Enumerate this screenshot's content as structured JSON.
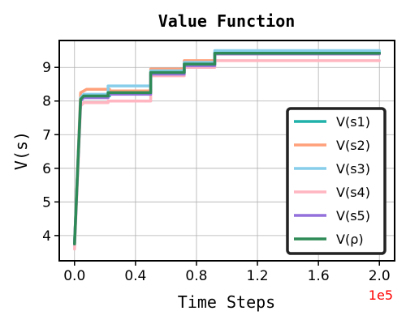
{
  "chart_data": {
    "type": "line",
    "title": "Value Function",
    "xlabel": "Time Steps",
    "ylabel": "V(s)",
    "x_multiplier_label": "1e5",
    "x_multiplier_color": "#ff0000",
    "xlim": [
      -0.1,
      2.1
    ],
    "ylim": [
      3.25,
      9.8
    ],
    "x_ticks": [
      0.0,
      0.4,
      0.8,
      1.2,
      1.6,
      2.0
    ],
    "x_tick_labels": [
      "0.0",
      "0.4",
      "0.8",
      "1.2",
      "1.6",
      "2.0"
    ],
    "y_ticks": [
      4,
      5,
      6,
      7,
      8,
      9
    ],
    "y_tick_labels": [
      "4",
      "5",
      "6",
      "7",
      "8",
      "9"
    ],
    "grid": true,
    "legend_position": "lower-right",
    "series": [
      {
        "name": "V(s1)",
        "color": "#20b2aa",
        "points": [
          [
            0.0,
            3.8
          ],
          [
            0.04,
            8.05
          ],
          [
            0.06,
            8.1
          ],
          [
            0.08,
            8.15
          ],
          [
            0.23,
            8.15
          ],
          [
            0.23,
            8.25
          ],
          [
            0.5,
            8.25
          ],
          [
            0.5,
            8.85
          ],
          [
            0.72,
            8.85
          ],
          [
            0.72,
            9.1
          ],
          [
            0.92,
            9.1
          ],
          [
            0.92,
            9.45
          ],
          [
            2.0,
            9.45
          ]
        ]
      },
      {
        "name": "V(s2)",
        "color": "#ffa07a",
        "points": [
          [
            0.0,
            3.75
          ],
          [
            0.04,
            8.25
          ],
          [
            0.08,
            8.35
          ],
          [
            0.23,
            8.35
          ],
          [
            0.23,
            8.3
          ],
          [
            0.5,
            8.3
          ],
          [
            0.5,
            8.95
          ],
          [
            0.72,
            8.95
          ],
          [
            0.72,
            9.2
          ],
          [
            0.92,
            9.2
          ],
          [
            0.92,
            9.4
          ],
          [
            2.0,
            9.4
          ]
        ]
      },
      {
        "name": "V(s3)",
        "color": "#87ceeb",
        "points": [
          [
            0.0,
            3.7
          ],
          [
            0.04,
            8.1
          ],
          [
            0.06,
            8.2
          ],
          [
            0.22,
            8.2
          ],
          [
            0.22,
            8.45
          ],
          [
            0.5,
            8.45
          ],
          [
            0.5,
            8.9
          ],
          [
            0.72,
            8.9
          ],
          [
            0.72,
            9.15
          ],
          [
            0.92,
            9.15
          ],
          [
            0.92,
            9.5
          ],
          [
            2.0,
            9.5
          ]
        ]
      },
      {
        "name": "V(s4)",
        "color": "#ffb6c1",
        "points": [
          [
            0.0,
            3.6
          ],
          [
            0.04,
            7.85
          ],
          [
            0.06,
            7.95
          ],
          [
            0.22,
            7.95
          ],
          [
            0.22,
            8.0
          ],
          [
            0.5,
            8.0
          ],
          [
            0.5,
            8.75
          ],
          [
            0.72,
            8.75
          ],
          [
            0.72,
            9.0
          ],
          [
            0.92,
            9.0
          ],
          [
            0.92,
            9.2
          ],
          [
            2.0,
            9.2
          ]
        ]
      },
      {
        "name": "V(s5)",
        "color": "#9370db",
        "points": [
          [
            0.0,
            3.75
          ],
          [
            0.04,
            8.0
          ],
          [
            0.06,
            8.1
          ],
          [
            0.22,
            8.1
          ],
          [
            0.22,
            8.2
          ],
          [
            0.5,
            8.2
          ],
          [
            0.5,
            8.8
          ],
          [
            0.72,
            8.8
          ],
          [
            0.72,
            9.05
          ],
          [
            0.92,
            9.05
          ],
          [
            0.92,
            9.4
          ],
          [
            2.0,
            9.4
          ]
        ]
      },
      {
        "name": "V(ρ)",
        "color": "#2e8b57",
        "points": [
          [
            0.0,
            3.75
          ],
          [
            0.04,
            8.05
          ],
          [
            0.06,
            8.15
          ],
          [
            0.22,
            8.15
          ],
          [
            0.22,
            8.25
          ],
          [
            0.5,
            8.25
          ],
          [
            0.5,
            8.85
          ],
          [
            0.72,
            8.85
          ],
          [
            0.72,
            9.1
          ],
          [
            0.92,
            9.1
          ],
          [
            0.92,
            9.42
          ],
          [
            2.0,
            9.42
          ]
        ]
      }
    ]
  }
}
